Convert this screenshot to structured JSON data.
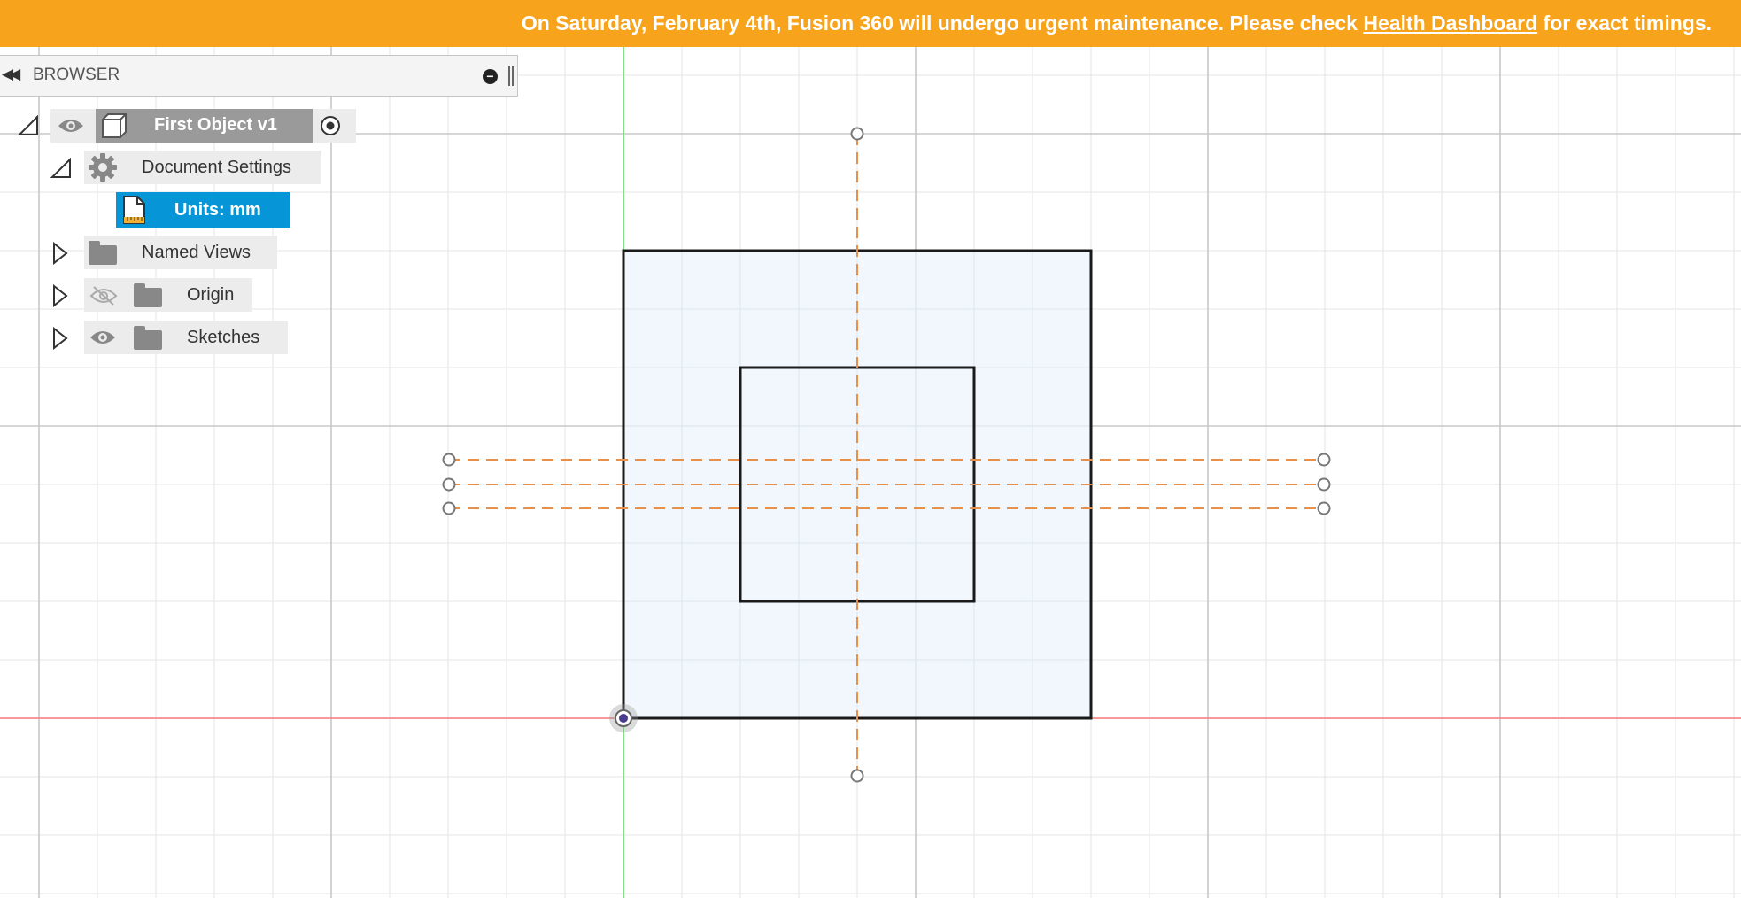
{
  "banner": {
    "text_before": "On Saturday, February 4th, Fusion 360 will undergo urgent maintenance. Please check ",
    "link": "Health Dashboard",
    "text_after": " for exact timings.",
    "color": "#f7a31c"
  },
  "browser": {
    "title": "BROWSER",
    "root": {
      "label": "First Object v1",
      "expanded": true,
      "visible": true
    },
    "items": [
      {
        "label": "Document Settings",
        "icon": "gear-icon",
        "expanded": true,
        "children": [
          {
            "label": "Units: mm",
            "icon": "units-document-icon",
            "selected": true
          }
        ]
      },
      {
        "label": "Named Views",
        "icon": "folder-icon",
        "expanded": false
      },
      {
        "label": "Origin",
        "icon": "folder-icon",
        "expanded": false,
        "visibility": "hidden"
      },
      {
        "label": "Sketches",
        "icon": "folder-icon",
        "expanded": false,
        "visibility": "visible"
      }
    ]
  },
  "sketch": {
    "outer_profile": "square",
    "inner_profile": "square",
    "construction_lines": 4,
    "colors": {
      "selection": "#0696d7",
      "construction": "#e8904a",
      "x_axis": "#ff8080",
      "y_axis": "#66dd66",
      "profile_fill": "#eef6fb",
      "profile_stroke": "#1a1a1a",
      "grid_minor": "#e6e6e6",
      "grid_major": "#c8c8c8"
    }
  }
}
